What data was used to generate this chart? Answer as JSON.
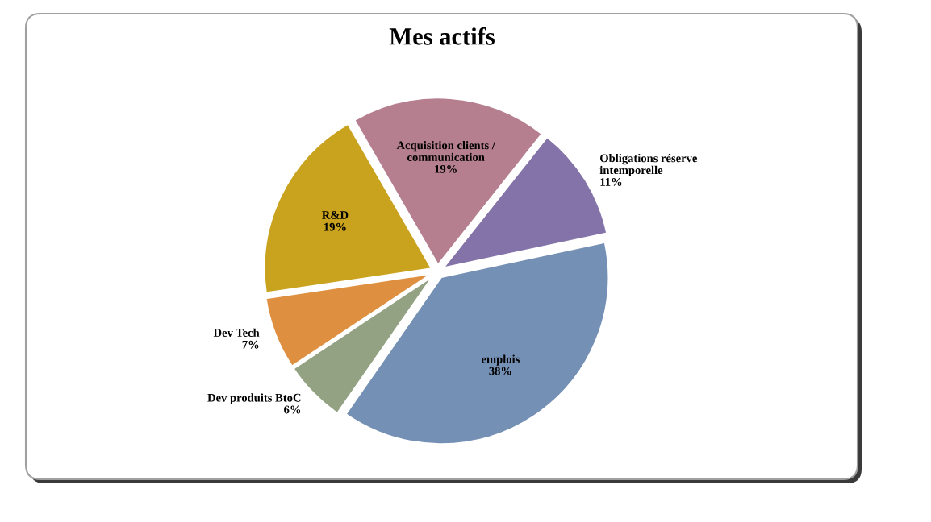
{
  "chart_data": {
    "type": "pie",
    "title": "Mes actifs",
    "categories": [
      "Acquisition clients / communication",
      "Obligations réserve intemporelle",
      "emplois",
      "Dev produits BtoC",
      "Dev Tech",
      "R&D"
    ],
    "values": [
      19,
      11,
      38,
      6,
      7,
      19
    ],
    "value_labels": [
      "19%",
      "11%",
      "38%",
      "6%",
      "7%",
      "19%"
    ],
    "colors": [
      "#b57f90",
      "#8373a8",
      "#7590b5",
      "#93a282",
      "#de9040",
      "#c9a21e"
    ]
  }
}
